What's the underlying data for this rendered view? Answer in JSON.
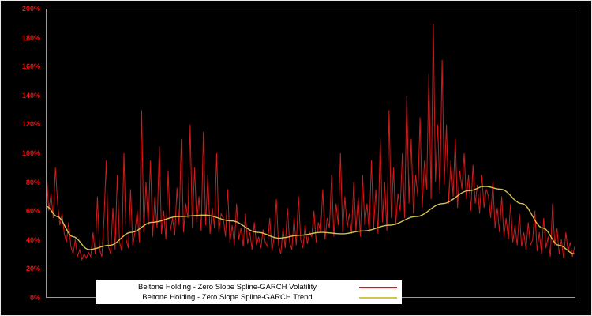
{
  "figure": {
    "background": "#000000",
    "frame_color": "#9a9a9a"
  },
  "y_axis": {
    "color": "#ee1111",
    "labels": [
      "200%",
      "180%",
      "160%",
      "140%",
      "120%",
      "100%",
      "80%",
      "60%",
      "40%",
      "20%",
      "0%"
    ]
  },
  "chart_data": {
    "type": "line",
    "title": "",
    "xlabel": "",
    "ylabel": "",
    "ylim": [
      0,
      200
    ],
    "y_tick_step": 20,
    "y_tick_labels": [
      "0%",
      "20%",
      "40%",
      "60%",
      "80%",
      "100%",
      "120%",
      "140%",
      "160%",
      "180%",
      "200%"
    ],
    "grid": false,
    "background": "#000000",
    "legend_position": "bottom-left",
    "series": [
      {
        "name": "Beltone Holding - Zero Slope Spline-GARCH Volatility",
        "color": "#cf1b1b",
        "unit": "%",
        "values": [
          85,
          60,
          72,
          55,
          90,
          65,
          50,
          58,
          44,
          38,
          52,
          35,
          30,
          40,
          28,
          33,
          26,
          30,
          27,
          31,
          28,
          45,
          30,
          70,
          33,
          28,
          55,
          95,
          35,
          30,
          62,
          33,
          85,
          38,
          32,
          100,
          40,
          34,
          75,
          36,
          45,
          60,
          38,
          130,
          45,
          80,
          50,
          95,
          42,
          70,
          48,
          105,
          44,
          60,
          40,
          88,
          46,
          55,
          43,
          76,
          50,
          110,
          45,
          65,
          55,
          120,
          48,
          90,
          52,
          70,
          46,
          115,
          50,
          85,
          44,
          62,
          48,
          100,
          45,
          58,
          55,
          42,
          75,
          38,
          50,
          36,
          65,
          40,
          48,
          35,
          58,
          37,
          45,
          33,
          52,
          36,
          42,
          34,
          47,
          38,
          35,
          55,
          32,
          42,
          68,
          36,
          30,
          48,
          34,
          62,
          38,
          33,
          55,
          36,
          70,
          40,
          34,
          50,
          37,
          45,
          42,
          60,
          38,
          52,
          45,
          75,
          40,
          55,
          48,
          85,
          42,
          65,
          50,
          100,
          45,
          70,
          48,
          58,
          44,
          80,
          46,
          70,
          42,
          85,
          50,
          65,
          45,
          95,
          48,
          75,
          44,
          110,
          52,
          80,
          46,
          130,
          55,
          90,
          50,
          72,
          60,
          100,
          55,
          140,
          65,
          110,
          58,
          85,
          70,
          125,
          62,
          95,
          75,
          155,
          68,
          190,
          80,
          120,
          72,
          165,
          78,
          120,
          65,
          95,
          70,
          110,
          62,
          88,
          75,
          100,
          68,
          85,
          60,
          92,
          65,
          78,
          58,
          85,
          62,
          75,
          70,
          55,
          80,
          48,
          62,
          45,
          70,
          42,
          55,
          40,
          65,
          38,
          50,
          36,
          58,
          35,
          45,
          33,
          52,
          36,
          40,
          60,
          32,
          45,
          30,
          55,
          34,
          42,
          28,
          65,
          36,
          48,
          30,
          40,
          27,
          45,
          32,
          38,
          28,
          35
        ]
      },
      {
        "name": "Beltone Holding - Zero Slope Spline-GARCH Trend",
        "color": "#d6c44e",
        "unit": "%",
        "control_points_x": [
          0,
          0.02,
          0.05,
          0.08,
          0.12,
          0.16,
          0.2,
          0.25,
          0.3,
          0.35,
          0.4,
          0.44,
          0.48,
          0.52,
          0.56,
          0.6,
          0.65,
          0.7,
          0.75,
          0.8,
          0.83,
          0.86,
          0.9,
          0.94,
          0.97,
          1.0
        ],
        "control_points_y": [
          63,
          56,
          42,
          33,
          36,
          45,
          52,
          56,
          57,
          53,
          45,
          41,
          43,
          45,
          44,
          46,
          50,
          56,
          65,
          74,
          77,
          75,
          65,
          48,
          36,
          30
        ]
      }
    ]
  }
}
